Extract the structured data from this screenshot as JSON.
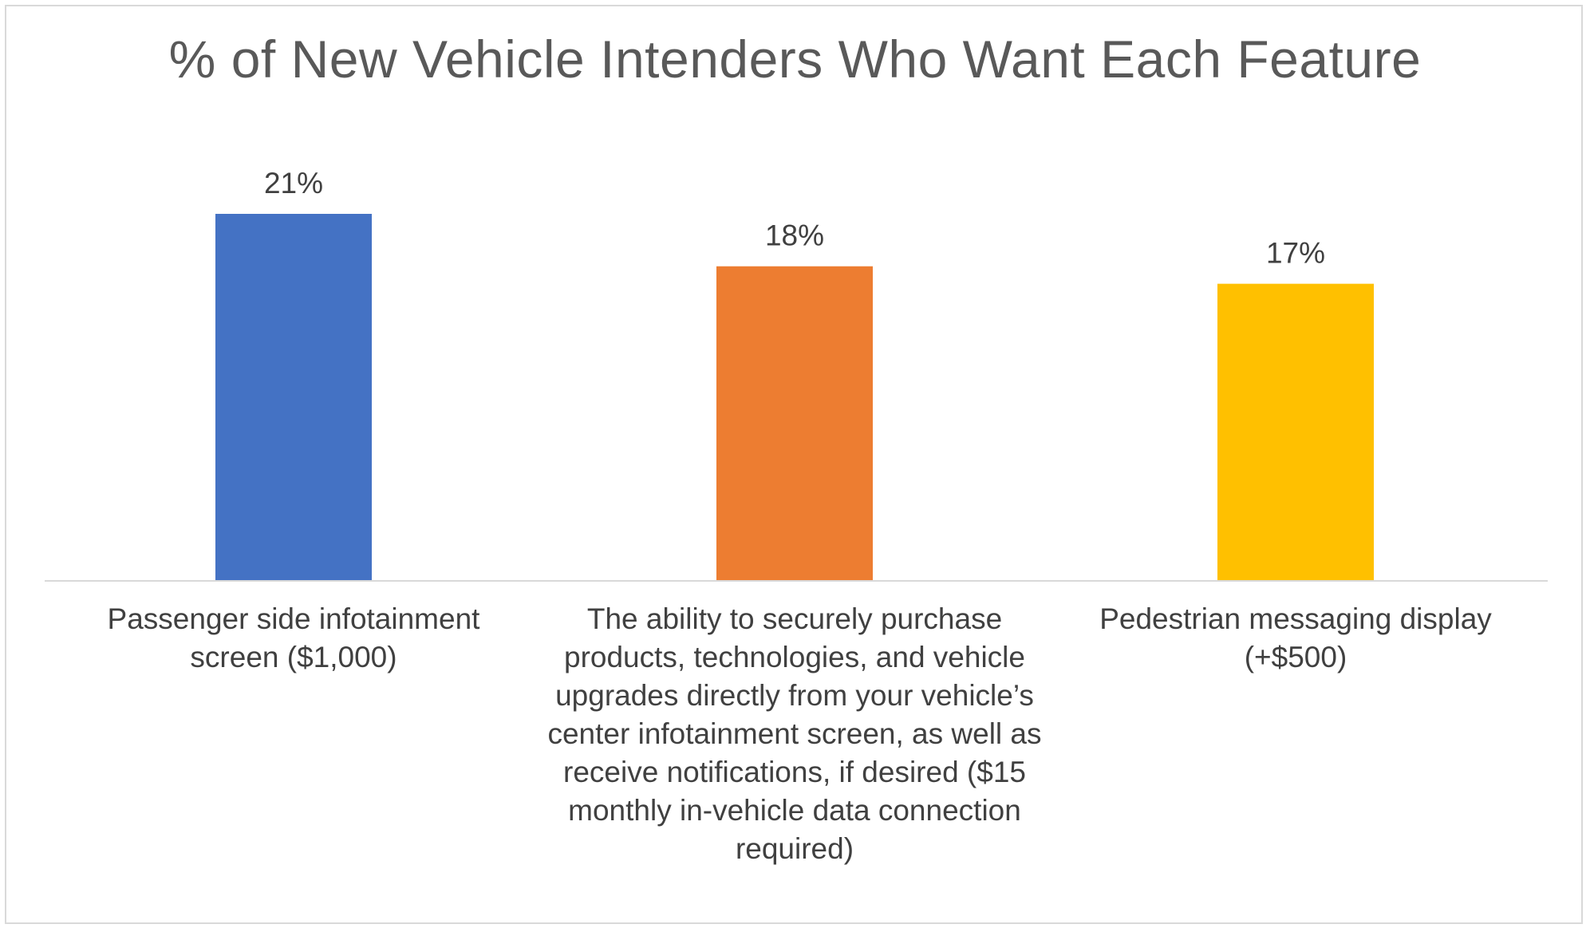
{
  "chart_data": {
    "type": "bar",
    "title": "% of New Vehicle Intenders Who Want Each Feature",
    "categories": [
      "Passenger side infotainment screen ($1,000)",
      "The ability to securely purchase products, technologies, and vehicle upgrades directly from your vehicle’s center infotainment screen, as well as receive notifications, if desired ($15 monthly in-vehicle data connection required)",
      "Pedestrian messaging display (+$500)"
    ],
    "values": [
      21,
      18,
      17
    ],
    "value_labels": [
      "21%",
      "18%",
      "17%"
    ],
    "colors": [
      "#4472C4",
      "#ED7D31",
      "#FFC000"
    ],
    "xlabel": "",
    "ylabel": "",
    "ylim": [
      0,
      21
    ],
    "grid": false,
    "legend": "none"
  }
}
